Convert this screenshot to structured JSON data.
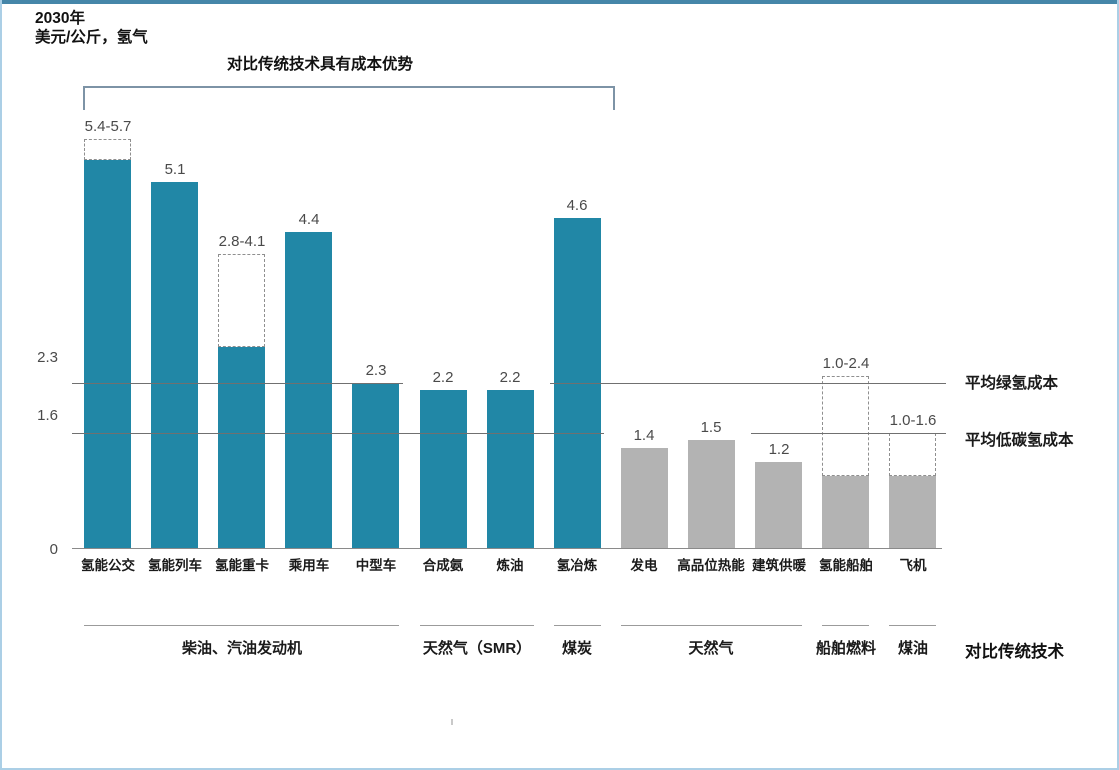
{
  "meta": {
    "title_line1": "2030年",
    "title_line2": "美元/公斤，氢气",
    "bracket_label": "对比传统技术具有成本优势",
    "bottom_right_label": "对比传统技术"
  },
  "chart_data": {
    "type": "bar",
    "title": "2030年",
    "unit_label": "美元/公斤，氢气",
    "ylim": [
      0,
      6.3
    ],
    "grid": false,
    "legend": false,
    "categories": [
      "氢能公交",
      "氢能列车",
      "氢能重卡",
      "乘用车",
      "中型车",
      "合成氨",
      "炼油",
      "氢冶炼",
      "发电",
      "高品位热能",
      "建筑供暖",
      "氢能船舶",
      "飞机"
    ],
    "bars": [
      {
        "label": "氢能公交",
        "low": 5.4,
        "high": 5.7,
        "display": "5.4-5.7",
        "color_key": "teal"
      },
      {
        "label": "氢能列车",
        "low": 5.1,
        "display": "5.1",
        "color_key": "teal"
      },
      {
        "label": "氢能重卡",
        "low": 2.8,
        "high": 4.1,
        "display": "2.8-4.1",
        "color_key": "teal"
      },
      {
        "label": "乘用车",
        "low": 4.4,
        "display": "4.4",
        "color_key": "teal"
      },
      {
        "label": "中型车",
        "low": 2.3,
        "display": "2.3",
        "color_key": "teal"
      },
      {
        "label": "合成氨",
        "low": 2.2,
        "display": "2.2",
        "color_key": "teal"
      },
      {
        "label": "炼油",
        "low": 2.2,
        "display": "2.2",
        "color_key": "teal"
      },
      {
        "label": "氢冶炼",
        "low": 4.6,
        "display": "4.6",
        "color_key": "teal"
      },
      {
        "label": "发电",
        "low": 1.4,
        "display": "1.4",
        "color_key": "gray"
      },
      {
        "label": "高品位热能",
        "low": 1.5,
        "display": "1.5",
        "color_key": "gray"
      },
      {
        "label": "建筑供暖",
        "low": 1.2,
        "display": "1.2",
        "color_key": "gray"
      },
      {
        "label": "氢能船舶",
        "low": 1.0,
        "high": 2.4,
        "display": "1.0-2.4",
        "color_key": "gray"
      },
      {
        "label": "飞机",
        "low": 1.0,
        "high": 1.6,
        "display": "1.0-1.6",
        "color_key": "gray"
      }
    ],
    "reference_lines": [
      {
        "value": 2.3,
        "axis_label": "2.3",
        "right_label": "平均绿氢成本"
      },
      {
        "value": 1.6,
        "axis_label": "1.6",
        "right_label": "平均低碳氢成本"
      }
    ],
    "axis": {
      "zero_label": "0"
    },
    "groups": [
      {
        "label": "柴油、汽油发动机",
        "start": 0,
        "end": 4
      },
      {
        "label": "天然气（SMR）",
        "start": 5,
        "end": 6
      },
      {
        "label": "煤炭",
        "start": 7,
        "end": 7
      },
      {
        "label": "天然气",
        "start": 8,
        "end": 10
      },
      {
        "label": "船舶燃料",
        "start": 11,
        "end": 11
      },
      {
        "label": "煤油",
        "start": 12,
        "end": 12
      }
    ],
    "colors": {
      "teal": "#2187a6",
      "gray": "#b3b3b3",
      "dashed_border": "#8f8f8f",
      "reference_line": "#707070",
      "bracket": "#7d93a6",
      "top_strip": "#4586a9",
      "frame_border": "#abcfe6"
    }
  }
}
